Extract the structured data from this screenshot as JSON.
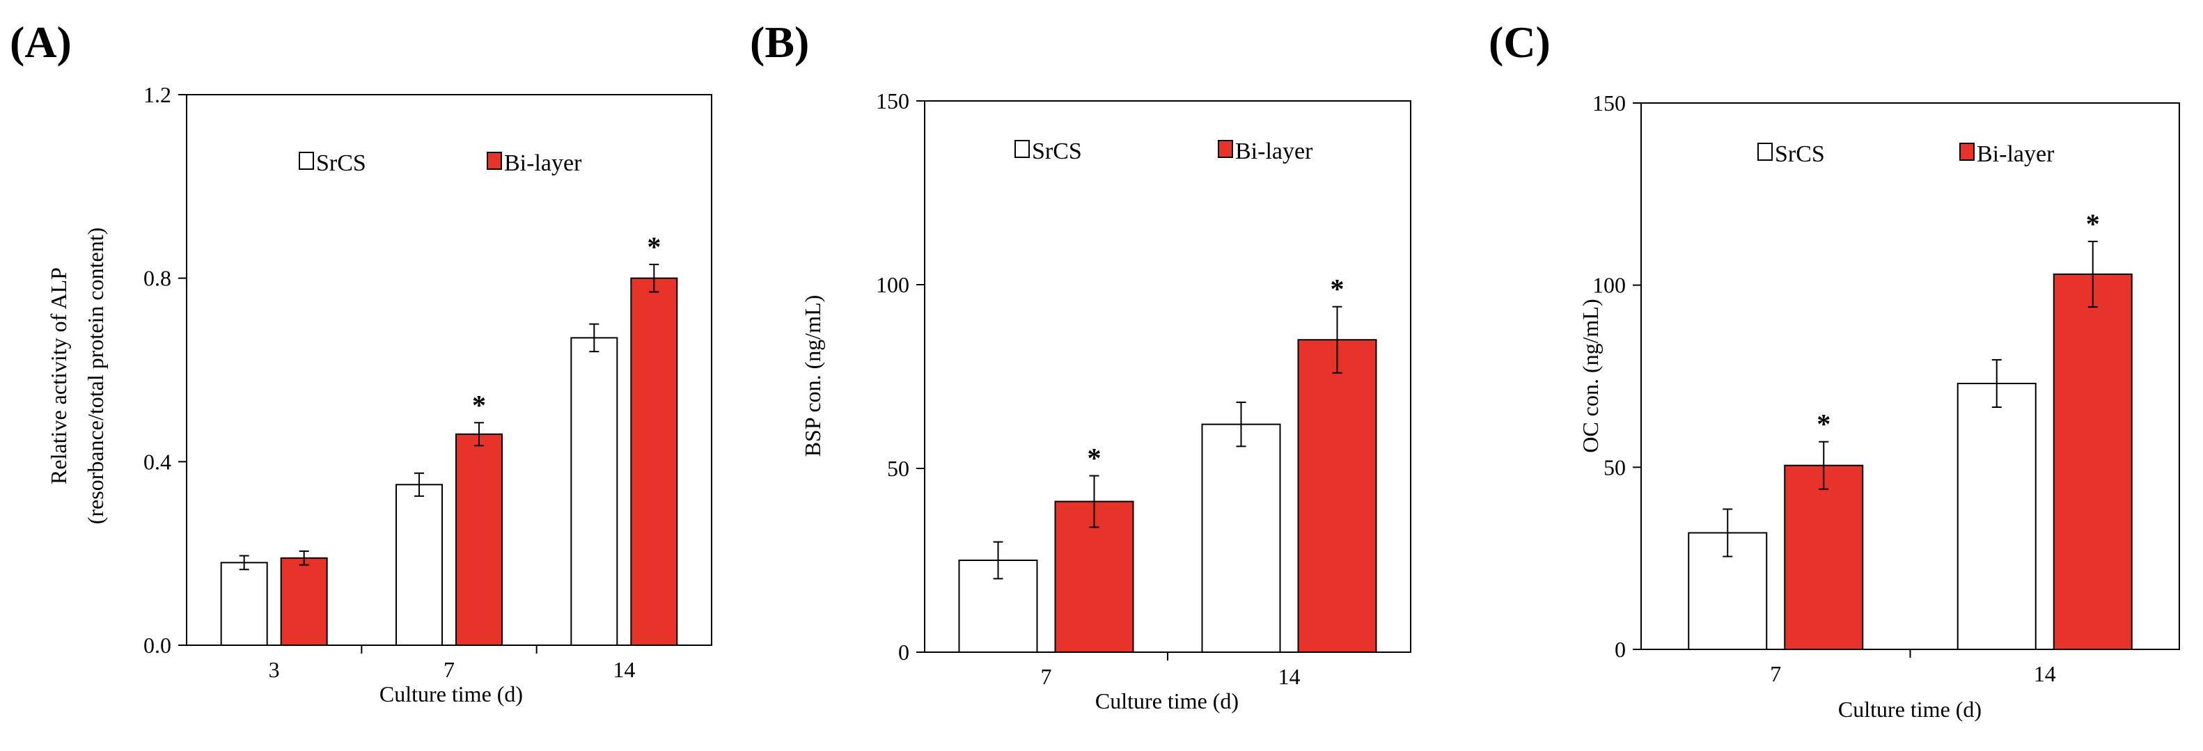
{
  "colors": {
    "srcs_fill": "#ffffff",
    "bilayer_fill": "#e8332a",
    "stroke": "#000000"
  },
  "chart_data": [
    {
      "panel": "(A)",
      "type": "bar",
      "categories": [
        "3",
        "7",
        "14"
      ],
      "series": [
        {
          "name": "SrCS",
          "values": [
            0.18,
            0.35,
            0.67
          ],
          "errors": [
            0.015,
            0.025,
            0.03
          ]
        },
        {
          "name": "Bi-layer",
          "values": [
            0.19,
            0.46,
            0.8
          ],
          "errors": [
            0.015,
            0.025,
            0.03
          ]
        }
      ],
      "significance": [
        {
          "category": "7",
          "series": "Bi-layer",
          "mark": "*"
        },
        {
          "category": "14",
          "series": "Bi-layer",
          "mark": "*"
        }
      ],
      "xlabel": "Culture time (d)",
      "ylabel": [
        "Relative activity of ALP",
        "(resorbance/total protein content)"
      ],
      "ylim": [
        0,
        1.2
      ],
      "yticks": [
        "0.0",
        "0.4",
        "0.8",
        "1.2"
      ],
      "legend": [
        "SrCS",
        "Bi-layer"
      ]
    },
    {
      "panel": "(B)",
      "type": "bar",
      "categories": [
        "7",
        "14"
      ],
      "series": [
        {
          "name": "SrCS",
          "values": [
            25,
            62
          ],
          "errors": [
            5,
            6
          ]
        },
        {
          "name": "Bi-layer",
          "values": [
            41,
            85
          ],
          "errors": [
            7,
            9
          ]
        }
      ],
      "significance": [
        {
          "category": "7",
          "series": "Bi-layer",
          "mark": "*"
        },
        {
          "category": "14",
          "series": "Bi-layer",
          "mark": "*"
        }
      ],
      "xlabel": "Culture time (d)",
      "ylabel": [
        "BSP con. (ng/mL)"
      ],
      "ylim": [
        0,
        150
      ],
      "yticks": [
        "0",
        "50",
        "100",
        "150"
      ],
      "legend": [
        "SrCS",
        "Bi-layer"
      ]
    },
    {
      "panel": "(C)",
      "type": "bar",
      "categories": [
        "7",
        "14"
      ],
      "series": [
        {
          "name": "SrCS",
          "values": [
            32,
            73
          ],
          "errors": [
            6.5,
            6.5
          ]
        },
        {
          "name": "Bi-layer",
          "values": [
            50.5,
            103
          ],
          "errors": [
            6.5,
            9
          ]
        }
      ],
      "significance": [
        {
          "category": "7",
          "series": "Bi-layer",
          "mark": "*"
        },
        {
          "category": "14",
          "series": "Bi-layer",
          "mark": "*"
        }
      ],
      "xlabel": "Culture time (d)",
      "ylabel": [
        "OC con. (ng/mL)"
      ],
      "ylim": [
        0,
        150
      ],
      "yticks": [
        "0",
        "50",
        "100",
        "150"
      ],
      "legend": [
        "SrCS",
        "Bi-layer"
      ]
    }
  ]
}
